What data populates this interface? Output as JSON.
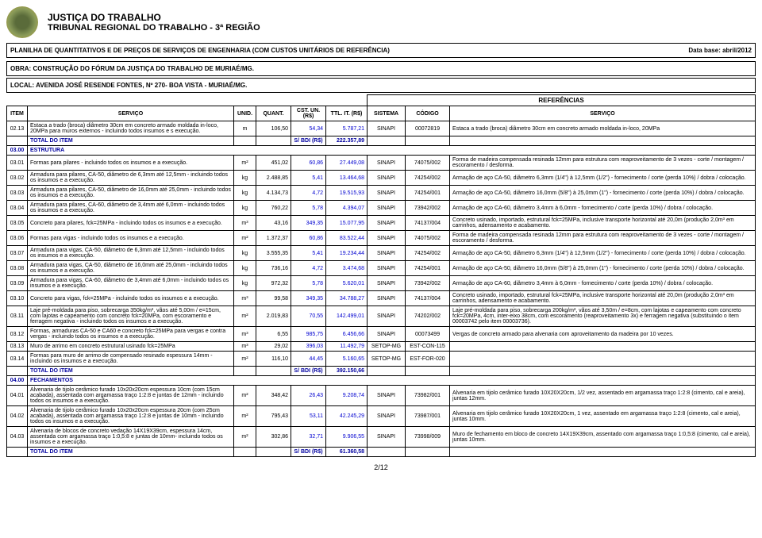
{
  "header": {
    "line1": "JUSTIÇA DO TRABALHO",
    "line2": "TRIBUNAL REGIONAL DO TRABALHO - 3ª REGIÃO"
  },
  "subheader": {
    "title": "PLANILHA DE QUANTITATIVOS E DE PREÇOS DE SERVIÇOS DE ENGENHARIA (COM CUSTOS UNITÁRIOS DE REFERÊNCIA)",
    "database": "Data base: abril/2012",
    "obra": "OBRA: CONSTRUÇÃO DO FÓRUM DA JUSTIÇA DO TRABALHO DE MURIAÉ/MG.",
    "local": "LOCAL: AVENIDA JOSÉ RESENDE FONTES, Nº 270- BOA VISTA - MURIAÉ/MG."
  },
  "columns": {
    "referencias": "REFERÊNCIAS",
    "item": "ITEM",
    "servico": "SERVIÇO",
    "unid": "UNID.",
    "quant": "QUANT.",
    "cst": "CST. UN. (R$)",
    "ttl": "TTL. IT. (R$)",
    "sistema": "SISTEMA",
    "codigo": "CÓDIGO",
    "servico2": "SERVIÇO"
  },
  "rows": [
    {
      "item": "02.13",
      "servico": "Estaca a trado (broca) diâmetro 30cm em concreto armado moldada in-loco, 20MPa para muros externos - incluindo todos insumos e s execução.",
      "unid": "m",
      "quant": "106,50",
      "cst": "54,34",
      "ttl": "5.787,21",
      "sistema": "SINAPI",
      "codigo": "00072819",
      "servico2": "Estaca a trado (broca) diâmetro 30cm em concreto armado moldada in-loco, 20MPa",
      "type": "data"
    },
    {
      "type": "total",
      "label": "TOTAL DO ITEM",
      "bdi": "S/ BDI (R$)",
      "ttl": "222.357,89"
    },
    {
      "type": "section",
      "item": "03.00",
      "label": "ESTRUTURA"
    },
    {
      "item": "03.01",
      "servico": "Formas para pilares - incluindo todos os insumos e a execução.",
      "unid": "m²",
      "quant": "451,02",
      "cst": "60,86",
      "ttl": "27.449,08",
      "sistema": "SINAPI",
      "codigo": "74075/002",
      "servico2": "Forma de madeira compensada resinada 12mm para estrutura com reaproveitamento de 3 vezes - corte / montagem / escoramento / desforma.",
      "type": "data"
    },
    {
      "item": "03.02",
      "servico": "Armadura para pilares, CA-50, diâmetro de 6,3mm até 12,5mm - incluindo todos os insumos e a execução.",
      "unid": "kg",
      "quant": "2.488,85",
      "cst": "5,41",
      "ttl": "13.464,68",
      "sistema": "SINAPI",
      "codigo": "74254/002",
      "servico2": "Armação de aço CA-50, diâmetro 6,3mm (1/4\") à 12,5mm (1/2\") - fornecimento / corte (perda 10%) / dobra / colocação.",
      "type": "data"
    },
    {
      "item": "03.03",
      "servico": "Armadura para pilares, CA-50, diâmetro de 16,0mm até 25,0mm - incluindo todos os insumos e a execução.",
      "unid": "kg",
      "quant": "4.134,73",
      "cst": "4,72",
      "ttl": "19.515,93",
      "sistema": "SINAPI",
      "codigo": "74254/001",
      "servico2": "Armação de aço CA-50, diâmetro 16,0mm (5/8\") à 25,0mm (1\") - fornecimento / corte (perda 10%) / dobra / colocação.",
      "type": "data"
    },
    {
      "item": "03.04",
      "servico": "Armadura para pilares, CA-60, diâmetro de 3,4mm até 6,0mm - incluindo todos os insumos e a execução.",
      "unid": "kg",
      "quant": "760,22",
      "cst": "5,78",
      "ttl": "4.394,07",
      "sistema": "SINAPI",
      "codigo": "73942/002",
      "servico2": "Armação de aço CA-60, diâmetro 3,4mm à 6,0mm - fornecimento / corte (perda 10%) / dobra / colocação.",
      "type": "data"
    },
    {
      "item": "03.05",
      "servico": "Concreto para pilares, fck=25MPa - incluindo todos os insumos e a execução.",
      "unid": "m³",
      "quant": "43,16",
      "cst": "349,35",
      "ttl": "15.077,95",
      "sistema": "SINAPI",
      "codigo": "74137/004",
      "servico2": "Concreto usinado, importado, estrutural fck=25MPa, inclusive transporte horizontal até 20,0m (produção 2,0m³ em carrinhos, adensamento e acabamento.",
      "type": "data"
    },
    {
      "item": "03.06",
      "servico": "Formas para vigas - incluindo todos os insumos e a execução.",
      "unid": "m²",
      "quant": "1.372,37",
      "cst": "60,86",
      "ttl": "83.522,44",
      "sistema": "SINAPI",
      "codigo": "74075/002",
      "servico2": "Forma de madeira compensada resinada 12mm para estrutura com reaproveitamento de 3 vezes - corte / montagem / escoramento / desforma.",
      "type": "data"
    },
    {
      "item": "03.07",
      "servico": "Armadura para vigas, CA-50, diâmetro de 6,3mm até 12,5mm - incluindo todos os insumos e a execução.",
      "unid": "kg",
      "quant": "3.555,35",
      "cst": "5,41",
      "ttl": "19.234,44",
      "sistema": "SINAPI",
      "codigo": "74254/002",
      "servico2": "Armação de aço CA-50, diâmetro 6,3mm (1/4\") à 12,5mm (1/2\") - fornecimento / corte (perda 10%) / dobra / colocação.",
      "type": "data"
    },
    {
      "item": "03.08",
      "servico": "Armadura para vigas, CA-50, diâmetro de 16,0mm até 25,0mm - incluindo todos os insumos e a execução.",
      "unid": "kg",
      "quant": "736,16",
      "cst": "4,72",
      "ttl": "3.474,68",
      "sistema": "SINAPI",
      "codigo": "74254/001",
      "servico2": "Armação de aço CA-50, diâmetro 16,0mm (5/8\") à 25,0mm (1\") - fornecimento / corte (perda 10%) / dobra / colocação.",
      "type": "data"
    },
    {
      "item": "03.09",
      "servico": "Armadura para vigas, CA-60, diâmetro de 3,4mm até 6,0mm - incluindo todos os insumos e a execução.",
      "unid": "kg",
      "quant": "972,32",
      "cst": "5,78",
      "ttl": "5.620,01",
      "sistema": "SINAPI",
      "codigo": "73942/002",
      "servico2": "Armação de aço CA-60, diâmetro 3,4mm à 6,0mm - fornecimento / corte (perda 10%) / dobra / colocação.",
      "type": "data"
    },
    {
      "item": "03.10",
      "servico": "Concreto para vigas, fck=25MPa - incluindo todos os insumos e a execução.",
      "unid": "m³",
      "quant": "99,58",
      "cst": "349,35",
      "ttl": "34.788,27",
      "sistema": "SINAPI",
      "codigo": "74137/004",
      "servico2": "Concreto usinado, importado, estrutural fck=25MPa, inclusive transporte horizontal até 20,0m (produção 2,0m³ em carrinhos, adensamento e acabamento.",
      "type": "data"
    },
    {
      "item": "03.11",
      "servico": "Laje pré-moldada para piso, sobrecarga 350kg/m³, vãos até 5,00m / e=15cm, com lajotas e capeamento com concreto fck=20MPa, com escoramento e ferragem negativa - incluindo todos os insumos e a execução.",
      "unid": "m²",
      "quant": "2.019,83",
      "cst": "70,55",
      "ttl": "142.499,01",
      "sistema": "SINAPI",
      "codigo": "74202/002",
      "servico2": "Laje pré-moldada para piso, sobrecarga 200kg/m², vãos até 3,50m / e=8cm, com lajotas e capeamento com concreto fck=20MPa, 4cm, inter-eixo 38cm, com escoramento (reaproveitamento 3x) e ferragem negativa (substituindo o item 00003742 pelo item 00003736).",
      "type": "data"
    },
    {
      "item": "03.12",
      "servico": "Formas, armaduras CA-50 e CA60 e concreto fck=25MPa para vergas e contra vergas - incluindo todos os insumos e a execução.",
      "unid": "m³",
      "quant": "6,55",
      "cst": "985,75",
      "ttl": "6.456,66",
      "sistema": "SINAPI",
      "codigo": "00073499",
      "servico2": "Vergas de concreto armado para alvenaria com aproveitamento da madeira por 10 vezes.",
      "type": "data"
    },
    {
      "item": "03.13",
      "servico": "Muro de arrimo em concreto estrutural usinado fck=25MPa",
      "unid": "m³",
      "quant": "29,02",
      "cst": "396,03",
      "ttl": "11.492,79",
      "sistema": "SETOP-MG",
      "codigo": "EST-CON-115",
      "servico2": "",
      "type": "data"
    },
    {
      "item": "03.14",
      "servico": "Formas para muro de arrimo de compensado resinado espessura 14mm - incluindo os insumos e a execução.",
      "unid": "m²",
      "quant": "116,10",
      "cst": "44,45",
      "ttl": "5.160,65",
      "sistema": "SETOP-MG",
      "codigo": "EST-FOR-020",
      "servico2": "",
      "type": "data"
    },
    {
      "type": "total",
      "label": "TOTAL DO ITEM",
      "bdi": "S/ BDI (R$)",
      "ttl": "392.150,66"
    },
    {
      "type": "section",
      "item": "04.00",
      "label": "FECHAMENTOS"
    },
    {
      "item": "04.01",
      "servico": "Alvenaria de tijolo cerâmico furado 10x20x20cm espessura 10cm (com 15cm acabada), assentada com argamassa traço 1:2:8 e juntas de 12mm - incluindo todos os insumos e a execução.",
      "unid": "m²",
      "quant": "348,42",
      "cst": "26,43",
      "ttl": "9.208,74",
      "sistema": "SINAPI",
      "codigo": "73982/001",
      "servico2": "Alvenaria em tijolo cerâmico furado 10X20X20cm, 1/2 vez, assentado em argamassa traço 1:2:8 (cimento, cal e areia), juntas 12mm.",
      "type": "data"
    },
    {
      "item": "04.02",
      "servico": "Alvenaria de tijolo cerâmico furado 10x20x20cm espessura 20cm (com 25cm acabada), assentada com argamassa traço 1:2:8 e juntas de 10mm - incluindo todos os insumos e a execução.",
      "unid": "m²",
      "quant": "795,43",
      "cst": "53,11",
      "ttl": "42.245,29",
      "sistema": "SINAPI",
      "codigo": "73987/001",
      "servico2": "Alvenaria em tijolo cerâmico furado 10X20X20cm, 1 vez, assentado em argamassa traço 1:2:8 (cimento, cal e areia), juntas 10mm.",
      "type": "data"
    },
    {
      "item": "04.03",
      "servico": "Alvenaria de blocos de concreto vedação 14X19X39cm, espessura 14cm, assentada com argamassa traço 1:0,5:8 e juntas de 10mm- incluindo todos os insumos e a execução.",
      "unid": "m²",
      "quant": "302,86",
      "cst": "32,71",
      "ttl": "9.906,55",
      "sistema": "SINAPI",
      "codigo": "73998/009",
      "servico2": "Muro de fechamento em bloco de concreto 14X19X39cm, assentado com argamassa traço 1:0,5:8 (cimento, cal e areia), juntas 10mm.",
      "type": "data"
    },
    {
      "type": "total",
      "label": "TOTAL DO ITEM",
      "bdi": "S/ BDI (R$)",
      "ttl": "61.360,58"
    }
  ],
  "pagenum": "2/12"
}
